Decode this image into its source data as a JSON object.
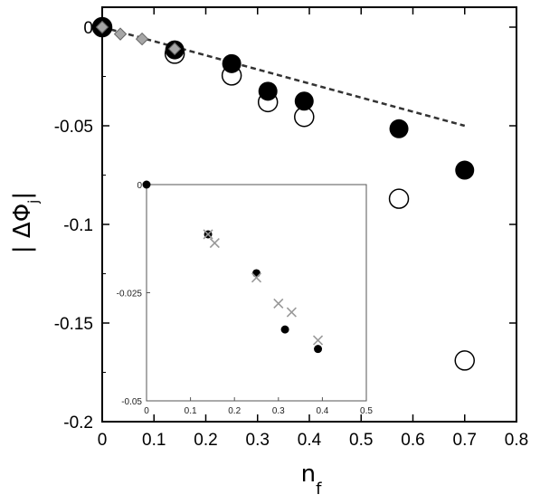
{
  "chart_data": [
    {
      "type": "scatter",
      "xlabel": "n_f",
      "xlabel_main": "n",
      "xlabel_sub": "f",
      "ylabel": "|ΔΦ_j|",
      "ylabel_main": "| ΔΦ",
      "ylabel_sub": "j",
      "ylabel_close": "|",
      "xlim": [
        0,
        0.8
      ],
      "ylim": [
        -0.2,
        0.002
      ],
      "xticks": [
        "0",
        "0.1",
        "0.2",
        "0.3",
        "0.4",
        "0.5",
        "0.6",
        "0.7",
        "0.8"
      ],
      "yticks": [
        "0",
        "-0.05",
        "-0.1",
        "-0.15",
        "-0.2"
      ],
      "xtick_values": [
        0,
        0.1,
        0.2,
        0.3,
        0.4,
        0.5,
        0.6,
        0.7,
        0.8
      ],
      "ytick_values": [
        0,
        -0.05,
        -0.1,
        -0.15,
        -0.2
      ],
      "series": [
        {
          "marker": "filled-circle",
          "color": "#000000",
          "x": [
            0.0,
            0.14,
            0.25,
            0.32,
            0.39,
            0.573,
            0.7
          ],
          "y": [
            0.0,
            -0.0115,
            -0.0185,
            -0.0325,
            -0.0375,
            -0.0515,
            -0.0725
          ]
        },
        {
          "marker": "open-circle",
          "color": "#000000",
          "x": [
            0.0,
            0.14,
            0.25,
            0.32,
            0.39,
            0.573,
            0.7
          ],
          "y": [
            0.0,
            -0.0135,
            -0.0245,
            -0.038,
            -0.0455,
            -0.087,
            -0.169
          ]
        },
        {
          "marker": "gray-diamond",
          "color": "#a6a6a6",
          "x": [
            0.0,
            0.035,
            0.077,
            0.14
          ],
          "y": [
            0.0,
            -0.0035,
            -0.006,
            -0.011
          ]
        },
        {
          "marker": "dashed-line",
          "color": "#333333",
          "x": [
            0.0,
            0.7
          ],
          "y": [
            0.0,
            -0.05
          ]
        }
      ]
    },
    {
      "type": "scatter",
      "inset": true,
      "xlim": [
        0,
        0.5
      ],
      "ylim": [
        -0.05,
        0.0
      ],
      "xticks": [
        "0",
        "0.1",
        "0.2",
        "0.3",
        "0.4",
        "0.5"
      ],
      "yticks": [
        "0",
        "-0.025",
        "-0.05"
      ],
      "xtick_values": [
        0,
        0.1,
        0.2,
        0.3,
        0.4,
        0.5
      ],
      "ytick_values": [
        0,
        -0.025,
        -0.05
      ],
      "series": [
        {
          "marker": "filled-dot",
          "color": "#000000",
          "x": [
            0.0,
            0.14,
            0.25,
            0.315,
            0.39
          ],
          "y": [
            0.0,
            -0.0115,
            -0.0205,
            -0.0335,
            -0.038
          ]
        },
        {
          "marker": "x-cross",
          "color": "#999999",
          "x": [
            0.14,
            0.155,
            0.25,
            0.3,
            0.33,
            0.39
          ],
          "y": [
            -0.0115,
            -0.0135,
            -0.0215,
            -0.0275,
            -0.0295,
            -0.036
          ]
        }
      ]
    }
  ]
}
